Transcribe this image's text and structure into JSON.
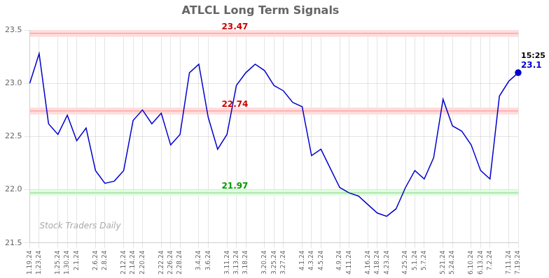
{
  "chart_data": {
    "type": "line",
    "title": "ATLCL Long Term Signals",
    "categories": [
      "1.19.24",
      "1.23.24",
      null,
      "1.25.24",
      "1.30.24",
      "2.1.24",
      null,
      "2.6.24",
      "2.8.24",
      null,
      "2.12.24",
      "2.14.24",
      "2.20.24",
      null,
      "2.22.24",
      "2.26.24",
      "2.28.24",
      null,
      "3.4.24",
      "3.6.24",
      null,
      "3.11.24",
      "3.13.24",
      "3.18.24",
      null,
      "3.20.24",
      "3.25.24",
      "3.27.24",
      null,
      "4.1.24",
      "4.3.24",
      "4.5.24",
      null,
      "4.9.24",
      "4.11.24",
      null,
      "4.16.24",
      "4.18.24",
      "4.23.24",
      null,
      "4.25.24",
      "5.1.24",
      "5.7.24",
      null,
      "5.21.24",
      "5.24.24",
      null,
      "6.10.24",
      "6.13.24",
      "7.2.24",
      null,
      "7.11.24",
      "7.19.24"
    ],
    "series": [
      {
        "color": "#0000cc",
        "values": [
          23.0,
          23.28,
          22.62,
          22.52,
          22.7,
          22.46,
          22.58,
          22.18,
          22.06,
          22.08,
          22.18,
          22.65,
          22.75,
          22.62,
          22.72,
          22.42,
          22.52,
          23.1,
          23.18,
          22.68,
          22.38,
          22.52,
          22.98,
          23.1,
          23.18,
          23.12,
          22.98,
          22.93,
          22.82,
          22.78,
          22.32,
          22.38,
          22.2,
          22.02,
          21.97,
          21.94,
          21.86,
          21.78,
          21.75,
          21.82,
          22.02,
          22.18,
          22.1,
          22.3,
          22.85,
          22.6,
          22.55,
          22.42,
          22.18,
          22.1,
          22.88,
          23.02,
          23.1
        ]
      }
    ],
    "ylim": [
      21.5,
      23.5
    ],
    "yticks": [
      21.5,
      {
        "value": 22.0,
        "label": "22.0"
      },
      22.5,
      {
        "value": 23.0,
        "label": "23.0"
      },
      23.5
    ],
    "grid": true,
    "annotations": [
      {
        "text": "23.47",
        "y": 23.47,
        "color": "#cc0000",
        "line_color": "#ff8888",
        "band_color": "#ffdddd"
      },
      {
        "text": "22.74",
        "y": 22.74,
        "color": "#cc0000",
        "line_color": "#ff8888",
        "band_color": "#ffdddd"
      },
      {
        "text": "21.97",
        "y": 21.97,
        "color": "#009900",
        "line_color": "#88cc88",
        "band_color": "#ddffdd"
      }
    ],
    "last_point": {
      "marker": "circle",
      "labels": [
        {
          "text": "15:25",
          "color": "#000000"
        },
        {
          "text": "23.1",
          "color": "#0000cc"
        }
      ]
    },
    "watermark": {
      "text": "Stock Traders Daily",
      "color": "#aaaaaa"
    }
  }
}
